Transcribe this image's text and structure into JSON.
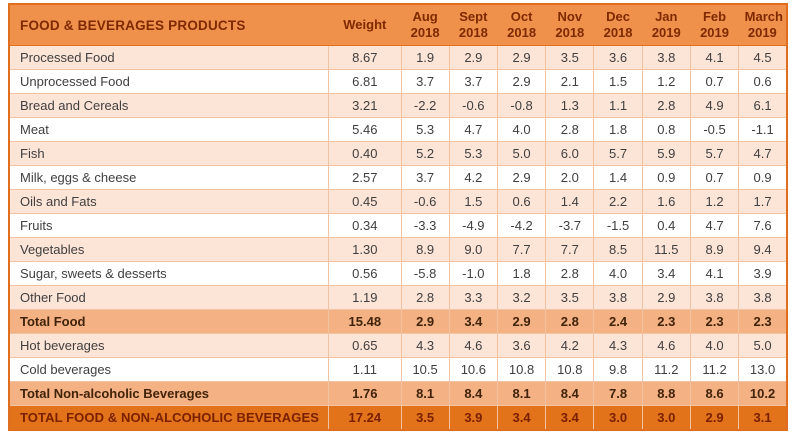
{
  "chart_data": {
    "type": "table",
    "title": "FOOD & BEVERAGES PRODUCTS",
    "weight_column_label": "Weight",
    "categories": [
      "Aug 2018",
      "Sept 2018",
      "Oct 2018",
      "Nov 2018",
      "Dec 2018",
      "Jan 2019",
      "Feb 2019",
      "March 2019"
    ],
    "series": [
      {
        "name": "Processed Food",
        "weight": 8.67,
        "values": [
          1.9,
          2.9,
          2.9,
          3.5,
          3.6,
          3.8,
          4.1,
          4.5
        ],
        "row_style": "peach"
      },
      {
        "name": "Unprocessed Food",
        "weight": 6.81,
        "values": [
          3.7,
          3.7,
          2.9,
          2.1,
          1.5,
          1.2,
          0.7,
          0.6
        ],
        "row_style": "white"
      },
      {
        "name": "Bread and Cereals",
        "weight": 3.21,
        "values": [
          -2.2,
          -0.6,
          -0.8,
          1.3,
          1.1,
          2.8,
          4.9,
          6.1
        ],
        "row_style": "peach"
      },
      {
        "name": "Meat",
        "weight": 5.46,
        "values": [
          5.3,
          4.7,
          4.0,
          2.8,
          1.8,
          0.8,
          -0.5,
          -1.1
        ],
        "row_style": "white"
      },
      {
        "name": "Fish",
        "weight": 0.4,
        "values": [
          5.2,
          5.3,
          5.0,
          6.0,
          5.7,
          5.9,
          5.7,
          4.7
        ],
        "row_style": "peach"
      },
      {
        "name": "Milk, eggs & cheese",
        "weight": 2.57,
        "values": [
          3.7,
          4.2,
          2.9,
          2.0,
          1.4,
          0.9,
          0.7,
          0.9
        ],
        "row_style": "white"
      },
      {
        "name": "Oils and Fats",
        "weight": 0.45,
        "values": [
          -0.6,
          1.5,
          0.6,
          1.4,
          2.2,
          1.6,
          1.2,
          1.7
        ],
        "row_style": "peach"
      },
      {
        "name": "Fruits",
        "weight": 0.34,
        "values": [
          -3.3,
          -4.9,
          -4.2,
          -3.7,
          -1.5,
          0.4,
          4.7,
          7.6
        ],
        "row_style": "white"
      },
      {
        "name": "Vegetables",
        "weight": 1.3,
        "values": [
          8.9,
          9.0,
          7.7,
          7.7,
          8.5,
          11.5,
          8.9,
          9.4
        ],
        "row_style": "peach"
      },
      {
        "name": "Sugar, sweets & desserts",
        "weight": 0.56,
        "values": [
          -5.8,
          -1.0,
          1.8,
          2.8,
          4.0,
          3.4,
          4.1,
          3.9
        ],
        "row_style": "white"
      },
      {
        "name": "Other Food",
        "weight": 1.19,
        "values": [
          2.8,
          3.3,
          3.2,
          3.5,
          3.8,
          2.9,
          3.8,
          3.8
        ],
        "row_style": "peach"
      },
      {
        "name": "Total Food",
        "weight": 15.48,
        "values": [
          2.9,
          3.4,
          2.9,
          2.8,
          2.4,
          2.3,
          2.3,
          2.3
        ],
        "row_style": "subtotal"
      },
      {
        "name": "Hot beverages",
        "weight": 0.65,
        "values": [
          4.3,
          4.6,
          3.6,
          4.2,
          4.3,
          4.6,
          4.0,
          5.0
        ],
        "row_style": "peach"
      },
      {
        "name": "Cold beverages",
        "weight": 1.11,
        "values": [
          10.5,
          10.6,
          10.8,
          10.8,
          9.8,
          11.2,
          11.2,
          13.0
        ],
        "row_style": "white"
      },
      {
        "name": "Total Non-alcoholic Beverages",
        "weight": 1.76,
        "values": [
          8.1,
          8.4,
          8.1,
          8.4,
          7.8,
          8.8,
          8.6,
          10.2
        ],
        "row_style": "subtotal"
      },
      {
        "name": "TOTAL FOOD & NON-ALCOHOLIC BEVERAGES",
        "weight": 17.24,
        "values": [
          3.5,
          3.9,
          3.4,
          3.4,
          3.0,
          3.0,
          2.9,
          3.1
        ],
        "row_style": "grand"
      }
    ],
    "layout": {
      "grid": true,
      "value_format": "one_decimal",
      "weight_format": "two_decimals"
    },
    "colors": {
      "header_bg": "#f0914b",
      "header_text": "#7e2900",
      "row_peach_bg": "#fce4d6",
      "row_white_bg": "#ffffff",
      "subtotal_bg": "#f4b183",
      "grand_total_bg": "#e2731a",
      "grand_total_text": "#7a2000",
      "grid_line": "#f1c3a2",
      "outer_border": "#e06e1e",
      "data_text": "#3f3f3f"
    }
  }
}
